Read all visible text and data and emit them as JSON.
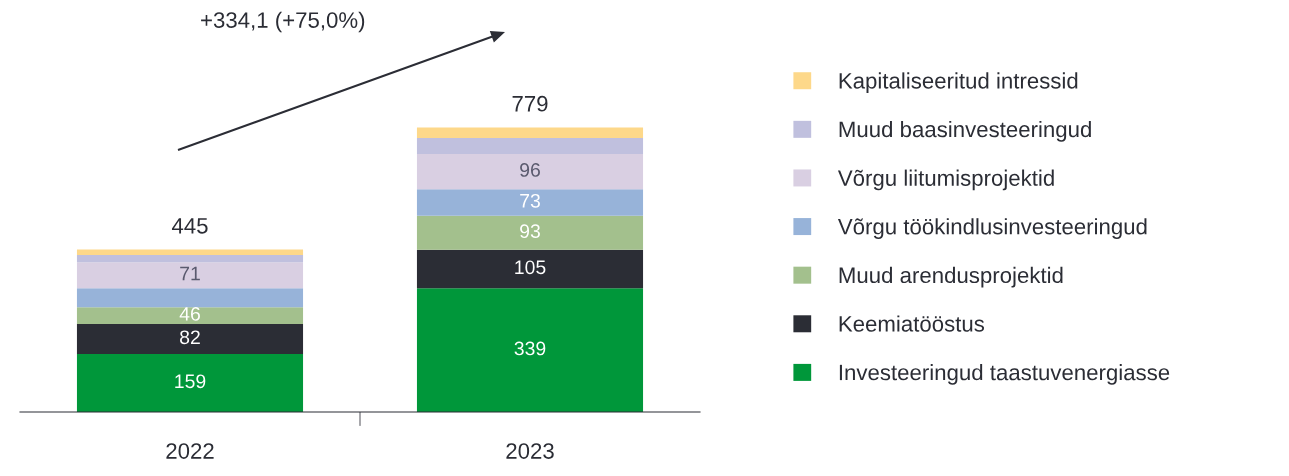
{
  "chart_data": {
    "type": "bar",
    "stacked": true,
    "categories": [
      "2022",
      "2023"
    ],
    "series": [
      {
        "name": "Investeeringud taastuvenergiasse",
        "color": "#00973a",
        "values": [
          159,
          339
        ],
        "value_labels": [
          "159",
          "339"
        ]
      },
      {
        "name": "Keemiatööstus",
        "color": "#2b2d35",
        "values": [
          82,
          105
        ],
        "value_labels": [
          "82",
          "105"
        ]
      },
      {
        "name": "Muud arendusprojektid",
        "color": "#a3c08d",
        "values": [
          46,
          93
        ],
        "value_labels": [
          "46",
          "93"
        ]
      },
      {
        "name": "Võrgu töökindlusinvesteeringud",
        "color": "#97b3d9",
        "values": [
          52,
          73
        ],
        "value_labels": [
          null,
          "73"
        ]
      },
      {
        "name": "Võrgu liitumisprojektid",
        "color": "#d9cfe2",
        "values": [
          71,
          96
        ],
        "value_labels": [
          "71",
          "96"
        ]
      },
      {
        "name": "Muud baasinvesteeringud",
        "color": "#c0c0de",
        "values": [
          20,
          44
        ],
        "value_labels": [
          null,
          null
        ]
      },
      {
        "name": "Kapitaliseeritud intressid",
        "color": "#fdd88a",
        "values": [
          15,
          29
        ],
        "value_labels": [
          null,
          null
        ]
      }
    ],
    "totals": [
      "445",
      "779"
    ],
    "annotations": [
      "+334,1 (+75,0%)"
    ],
    "legend": "right",
    "grid": false
  }
}
